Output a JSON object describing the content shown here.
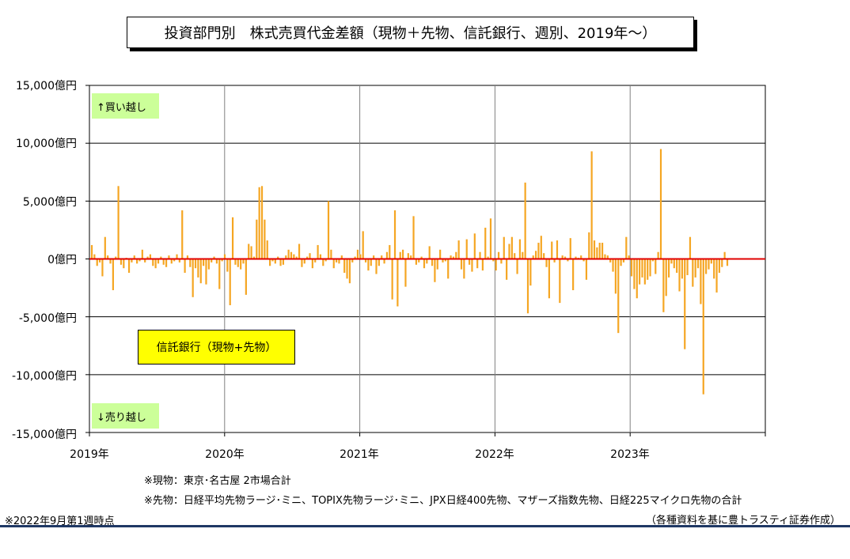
{
  "title": "投資部門別　株式売買代金差額（現物＋先物、信託銀行、週別、2019年～）",
  "labels": {
    "buy": "↑買い越し",
    "sell": "↓売り越し",
    "series_box": "信託銀行（現物+先物）"
  },
  "notes": {
    "note1": "※現物：東京･名古屋 2市場合計",
    "note2": "※先物：日経平均先物ラージ･ミニ、TOPIX先物ラージ･ミニ、JPX日経400先物、マザーズ指数先物、日経225マイクロ先物の合計",
    "asof": "※2022年9月第1週時点",
    "source": "（各種資料を基に豊トラスティ証券作成）"
  },
  "colors": {
    "bar": "#f5a623",
    "zero_line": "#e00000",
    "grid": "#000000",
    "buy_box": "#ccff99",
    "series_box": "#ffff00",
    "footer_rule": "#1f3864"
  },
  "chart_data": {
    "type": "bar",
    "x_start": "2019-01",
    "x_end": "2024-01",
    "ylim": [
      -15000,
      15000
    ],
    "unit": "億円",
    "yticks": [
      "15,000億円",
      "10,000億円",
      "5,000億円",
      "0億円",
      "-5,000億円",
      "-10,000億円",
      "-15,000億円"
    ],
    "ytick_values": [
      15000,
      10000,
      5000,
      0,
      -5000,
      -10000,
      -15000
    ],
    "xticks": [
      "2019年",
      "2020年",
      "2021年",
      "2022年",
      "2023年"
    ],
    "grid": true,
    "series": [
      {
        "weekly_values": [
          1200,
          400,
          -600,
          -300,
          -1500,
          1900,
          300,
          -400,
          -2700,
          200,
          6300,
          -500,
          -800,
          100,
          -1200,
          -300,
          300,
          -400,
          -200,
          800,
          -300,
          200,
          400,
          -600,
          -800,
          -400,
          200,
          -500,
          -700,
          300,
          -400,
          -200,
          400,
          -300,
          4200,
          -1200,
          300,
          -700,
          -3300,
          -800,
          -1600,
          -2100,
          -600,
          -2200,
          -900,
          -300,
          200,
          -400,
          -2600,
          -200,
          400,
          -1100,
          -4000,
          3600,
          -500,
          -700,
          -900,
          -400,
          -3100,
          1300,
          1100,
          200,
          3400,
          6200,
          6300,
          3400,
          1600,
          -600,
          -200,
          -400,
          200,
          -600,
          -500,
          300,
          800,
          600,
          400,
          200,
          1300,
          -700,
          -400,
          200,
          500,
          -800,
          -300,
          1200,
          400,
          -600,
          -200,
          5000,
          800,
          -800,
          -300,
          -400,
          300,
          -1200,
          -1700,
          -2100,
          -300,
          200,
          800,
          400,
          2400,
          -300,
          -1000,
          -600,
          300,
          -1300,
          -600,
          300,
          -400,
          600,
          1200,
          -3500,
          4200,
          -4100,
          600,
          800,
          -2400,
          500,
          300,
          3700,
          -500,
          -300,
          200,
          -800,
          -400,
          1100,
          -600,
          -2000,
          -900,
          800,
          -300,
          -200,
          -1700,
          300,
          200,
          600,
          1600,
          -900,
          -1700,
          1700,
          -500,
          -1100,
          2200,
          -800,
          600,
          -1000,
          2700,
          200,
          3500,
          -200,
          -1000,
          600,
          -400,
          1900,
          -1800,
          1300,
          1900,
          500,
          -1300,
          1700,
          600,
          6600,
          -4700,
          -2300,
          300,
          700,
          1400,
          2000,
          500,
          -700,
          -3400,
          1500,
          -300,
          1600,
          -3800,
          300,
          200,
          -200,
          1800,
          -2700,
          200,
          100,
          300,
          -200,
          -1800,
          2300,
          9300,
          1600,
          1000,
          1400,
          1400,
          400,
          300,
          -300,
          -1100,
          -3000,
          -6400,
          -600,
          -300,
          1900,
          300,
          -1500,
          -2600,
          -3400,
          -2200,
          -1600,
          -2200,
          -1800,
          -1500,
          -200,
          -1300,
          600,
          9500,
          -4600,
          -3200,
          -1600,
          -400,
          -800,
          -1200,
          -2800,
          -1700,
          -7800,
          -1400,
          1900,
          -2400,
          -1600,
          -800,
          -3900,
          -11700,
          -1300,
          -900,
          -400,
          -1700,
          -2900,
          -1200,
          -700,
          600,
          -600
        ]
      }
    ]
  }
}
